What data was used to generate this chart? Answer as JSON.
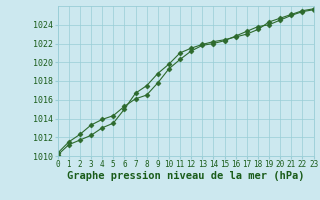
{
  "title": "Graphe pression niveau de la mer (hPa)",
  "x_labels": [
    0,
    1,
    2,
    3,
    4,
    5,
    6,
    7,
    8,
    9,
    10,
    11,
    12,
    13,
    14,
    15,
    16,
    17,
    18,
    19,
    20,
    21,
    22,
    23
  ],
  "series1": [
    1010.1,
    1011.2,
    1011.7,
    1012.2,
    1013.0,
    1013.5,
    1015.0,
    1016.7,
    1017.5,
    1018.8,
    1019.8,
    1021.0,
    1021.5,
    1021.9,
    1022.2,
    1022.4,
    1022.7,
    1023.0,
    1023.5,
    1024.3,
    1024.7,
    1025.1,
    1025.5,
    1025.7
  ],
  "series2": [
    1010.3,
    1011.5,
    1012.3,
    1013.3,
    1013.9,
    1014.3,
    1015.3,
    1016.1,
    1016.5,
    1017.8,
    1019.3,
    1020.3,
    1021.2,
    1021.8,
    1022.0,
    1022.3,
    1022.8,
    1023.3,
    1023.8,
    1024.0,
    1024.5,
    1025.0,
    1025.4,
    1025.6
  ],
  "line_color": "#2d6a2d",
  "marker": "D",
  "marker_size": 2.5,
  "bg_color": "#cce8ef",
  "grid_color": "#99cdd6",
  "text_color": "#1a5c1a",
  "ylim": [
    1010,
    1026
  ],
  "yticks": [
    1010,
    1012,
    1014,
    1016,
    1018,
    1020,
    1022,
    1024
  ],
  "xlim": [
    0,
    23
  ],
  "title_fontsize": 7.5,
  "tick_fontsize": 5.5,
  "ytick_fontsize": 6.0
}
